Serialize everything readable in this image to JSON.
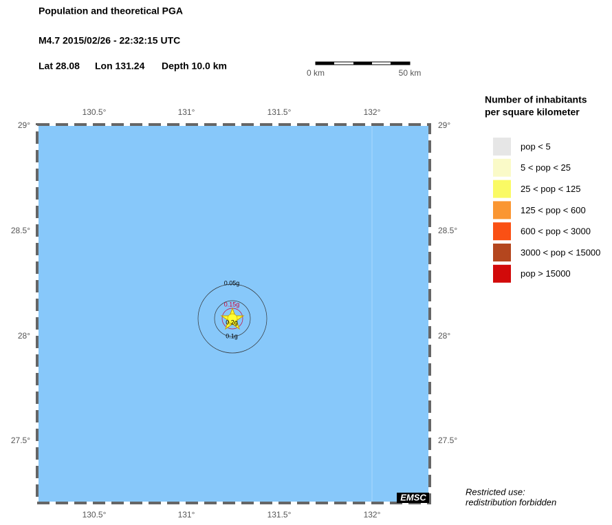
{
  "header": {
    "title": "Population and theoretical PGA",
    "event": "M4.7  2015/02/26 - 22:32:15 UTC",
    "lat": "Lat 28.08",
    "lon": "Lon 131.24",
    "depth": "Depth  10.0 km"
  },
  "scale_bar": {
    "start": "0 km",
    "end": "50 km"
  },
  "map": {
    "lon_labels": [
      "130.5°",
      "131°",
      "131.5°",
      "132°"
    ],
    "lat_labels": [
      "29°",
      "28.5°",
      "28°",
      "27.5°"
    ],
    "contours": [
      "0.05g",
      "0.15g",
      "0.2g",
      "0.1g"
    ],
    "logo": "EMSC"
  },
  "legend": {
    "title": [
      "Number of inhabitants",
      "per square kilometer"
    ],
    "items": [
      {
        "label": "pop < 5",
        "color": "#e6e6e6"
      },
      {
        "label": "5 < pop < 25",
        "color": "#fafac8"
      },
      {
        "label": "25 < pop < 125",
        "color": "#fafa64"
      },
      {
        "label": "125 < pop < 600",
        "color": "#fa9632"
      },
      {
        "label": "600 < pop < 3000",
        "color": "#fa5014"
      },
      {
        "label": "3000 < pop < 15000",
        "color": "#b4461e"
      },
      {
        "label": "pop > 15000",
        "color": "#d20a0a"
      }
    ]
  },
  "notice": [
    "Restricted use:",
    "redistribution forbidden"
  ]
}
